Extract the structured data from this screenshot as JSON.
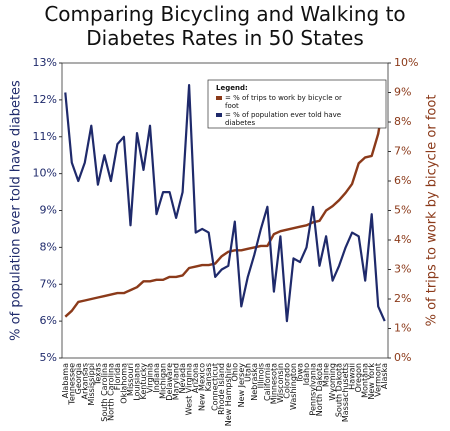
{
  "chart_data": {
    "type": "line",
    "title": "Comparing Bicycling and Walking to Diabetes Rates in 50 States",
    "y_label": "% of population ever told have diabetes",
    "y2_label": "% of trips to work by bicycle or foot",
    "legend_title": "Legend:",
    "legend": "top-right",
    "categories": [
      "Alabama",
      "Tennessee",
      "Georgia",
      "Arkansas",
      "Mississippi",
      "Texas",
      "South Carolina",
      "North Carolina",
      "Florida",
      "Oklahoma",
      "Missouri",
      "Louisiana",
      "Kentucky",
      "Virginia",
      "Indiana",
      "Michigan",
      "Delaware",
      "Maryland",
      "Nevada",
      "West Virginia",
      "Arizona",
      "New Mexico",
      "Kansas",
      "Connecticut",
      "Rhode Island",
      "New Hampshire",
      "Ohio",
      "New Jersey",
      "Utah",
      "Nebraska",
      "Illinois",
      "California",
      "Minnesota",
      "Wisconsin",
      "Colorado",
      "Washington",
      "Iowa",
      "Idaho",
      "Pennsylvania",
      "North Dakota",
      "Maine",
      "Wyoming",
      "South Dakota",
      "Massachusetts",
      "Hawaii",
      "Oregon",
      "Montana",
      "New York",
      "Vermont",
      "Alaska"
    ],
    "series": [
      {
        "name": "= % of trips to work by bicycle or foot",
        "color": "#8b3a1a",
        "axis": "y2",
        "values": [
          1.4,
          1.6,
          1.9,
          1.95,
          2.0,
          2.05,
          2.1,
          2.15,
          2.2,
          2.2,
          2.3,
          2.4,
          2.6,
          2.6,
          2.65,
          2.65,
          2.75,
          2.75,
          2.8,
          3.05,
          3.1,
          3.15,
          3.15,
          3.2,
          3.45,
          3.6,
          3.65,
          3.65,
          3.7,
          3.75,
          3.8,
          3.8,
          4.2,
          4.3,
          4.35,
          4.4,
          4.45,
          4.5,
          4.6,
          4.65,
          5.0,
          5.15,
          5.35,
          5.6,
          5.9,
          6.6,
          6.8,
          6.85,
          7.6,
          8.9
        ]
      },
      {
        "name": "= % of population ever told have diabetes",
        "color": "#1f2a6b",
        "axis": "y",
        "values": [
          12.2,
          10.3,
          9.8,
          10.3,
          11.3,
          9.7,
          10.5,
          9.8,
          10.8,
          11.0,
          8.6,
          11.1,
          10.1,
          11.3,
          8.9,
          9.5,
          9.5,
          8.8,
          9.5,
          12.4,
          8.4,
          8.5,
          8.4,
          7.2,
          7.4,
          7.5,
          8.7,
          6.4,
          7.2,
          7.8,
          8.5,
          9.1,
          6.8,
          8.3,
          6.0,
          7.7,
          7.6,
          8.0,
          9.1,
          7.5,
          8.3,
          7.1,
          7.5,
          8.0,
          8.4,
          8.3,
          7.1,
          8.9,
          6.4,
          6.0
        ]
      }
    ],
    "ylim": [
      5,
      13
    ],
    "yticks": [
      {
        "value": 5,
        "label": "5%"
      },
      {
        "value": 6,
        "label": "6%"
      },
      {
        "value": 7,
        "label": "7%"
      },
      {
        "value": 8,
        "label": "8%"
      },
      {
        "value": 9,
        "label": "9%"
      },
      {
        "value": 10,
        "label": "10%"
      },
      {
        "value": 11,
        "label": "11%"
      },
      {
        "value": 12,
        "label": "12%"
      },
      {
        "value": 13,
        "label": "13%"
      }
    ],
    "y2lim": [
      0,
      10
    ],
    "y2ticks": [
      {
        "value": 0,
        "label": "0%"
      },
      {
        "value": 1,
        "label": "1%"
      },
      {
        "value": 2,
        "label": "2%"
      },
      {
        "value": 3,
        "label": "3%"
      },
      {
        "value": 4,
        "label": "4%"
      },
      {
        "value": 5,
        "label": "5%"
      },
      {
        "value": 6,
        "label": "6%"
      },
      {
        "value": 7,
        "label": "7%"
      },
      {
        "value": 8,
        "label": "8%"
      },
      {
        "value": 9,
        "label": "9%"
      },
      {
        "value": 10,
        "label": "10%"
      }
    ]
  }
}
